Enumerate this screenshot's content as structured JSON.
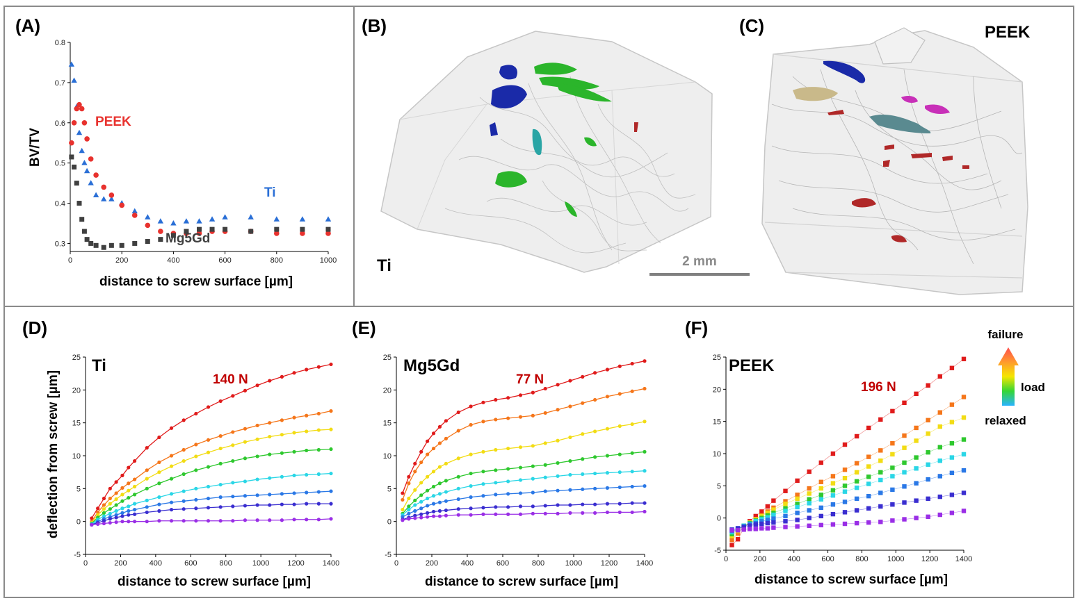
{
  "panels": {
    "A": "(A)",
    "B": "(B)",
    "C": "(C)",
    "D": "(D)",
    "E": "(E)",
    "F": "(F)"
  },
  "render3d": {
    "B_label": "Ti",
    "C_label": "PEEK",
    "scale_bar": "2 mm",
    "colors": {
      "volume": "#d8d8d8",
      "blue": "#1a2aa8",
      "green": "#2bb52b",
      "teal": "#2aa5a5",
      "red": "#b02828",
      "magenta": "#c830b8",
      "tan": "#c9b98a",
      "slate": "#5a8a90"
    }
  },
  "legend": {
    "top": "failure",
    "middle": "load",
    "bottom": "relaxed",
    "gradient": [
      "#ff4d4d",
      "#ff9a2e",
      "#f5e600",
      "#35d635",
      "#2ab4ff"
    ]
  },
  "chart_data": [
    {
      "id": "A",
      "type": "scatter",
      "xlabel": "distance to screw surface   [µm]",
      "ylabel": "BV/TV",
      "xlim": [
        0,
        1000
      ],
      "ylim": [
        0.28,
        0.8
      ],
      "xticks": [
        0,
        200,
        400,
        600,
        800,
        1000
      ],
      "yticks": [
        0.3,
        0.4,
        0.5,
        0.6,
        0.7,
        0.8
      ],
      "ytick_labels": [
        "0.3",
        "0.4",
        "0.5",
        "0.6",
        "0.7",
        "0.8"
      ],
      "series": [
        {
          "name": "Ti",
          "color": "#2a6fd6",
          "marker": "triangle",
          "x": [
            5,
            15,
            25,
            35,
            45,
            55,
            65,
            80,
            100,
            130,
            160,
            200,
            250,
            300,
            350,
            400,
            450,
            500,
            550,
            600,
            700,
            800,
            900,
            1000
          ],
          "y": [
            0.745,
            0.705,
            0.64,
            0.575,
            0.53,
            0.5,
            0.48,
            0.45,
            0.42,
            0.41,
            0.41,
            0.4,
            0.38,
            0.365,
            0.355,
            0.35,
            0.355,
            0.355,
            0.36,
            0.365,
            0.365,
            0.36,
            0.36,
            0.36
          ]
        },
        {
          "name": "PEEK",
          "color": "#e8322e",
          "marker": "circle",
          "x": [
            5,
            15,
            25,
            35,
            45,
            55,
            65,
            80,
            100,
            130,
            160,
            200,
            250,
            300,
            350,
            400,
            450,
            500,
            550,
            600,
            700,
            800,
            900,
            1000
          ],
          "y": [
            0.55,
            0.6,
            0.635,
            0.645,
            0.635,
            0.6,
            0.56,
            0.51,
            0.47,
            0.44,
            0.42,
            0.395,
            0.37,
            0.345,
            0.33,
            0.325,
            0.325,
            0.325,
            0.33,
            0.33,
            0.33,
            0.325,
            0.325,
            0.325
          ]
        },
        {
          "name": "Mg5Gd",
          "color": "#404040",
          "marker": "square",
          "x": [
            5,
            15,
            25,
            35,
            45,
            55,
            65,
            80,
            100,
            130,
            160,
            200,
            250,
            300,
            350,
            400,
            450,
            500,
            550,
            600,
            700,
            800,
            900,
            1000
          ],
          "y": [
            0.515,
            0.49,
            0.45,
            0.4,
            0.36,
            0.33,
            0.31,
            0.3,
            0.295,
            0.29,
            0.295,
            0.295,
            0.3,
            0.305,
            0.31,
            0.32,
            0.33,
            0.335,
            0.335,
            0.335,
            0.33,
            0.335,
            0.335,
            0.335
          ]
        }
      ]
    },
    {
      "id": "D",
      "type": "line",
      "title": "Ti",
      "force": "140 N",
      "xlabel": "distance to screw surface   [µm]",
      "ylabel": "deflection from screw   [µm]",
      "xlim": [
        0,
        1400
      ],
      "ylim": [
        -5,
        25
      ],
      "xticks": [
        0,
        200,
        400,
        600,
        800,
        1000,
        1200,
        1400
      ],
      "yticks": [
        -5,
        0,
        5,
        10,
        15,
        20,
        25
      ],
      "x": [
        35,
        70,
        105,
        140,
        175,
        210,
        245,
        280,
        350,
        420,
        490,
        560,
        630,
        700,
        770,
        840,
        910,
        980,
        1050,
        1120,
        1190,
        1260,
        1330,
        1400
      ],
      "series": [
        {
          "color": "#e01b1b",
          "values": [
            0.5,
            2.0,
            3.5,
            5.0,
            6.0,
            7.0,
            8.2,
            9.2,
            11.2,
            12.8,
            14.2,
            15.4,
            16.4,
            17.4,
            18.3,
            19.1,
            19.9,
            20.7,
            21.4,
            22.0,
            22.6,
            23.1,
            23.5,
            23.9
          ]
        },
        {
          "color": "#f5761a",
          "values": [
            0.0,
            1.4,
            2.5,
            3.5,
            4.3,
            5.1,
            5.8,
            6.4,
            7.8,
            9.0,
            10.0,
            10.9,
            11.7,
            12.4,
            13.0,
            13.6,
            14.1,
            14.6,
            15.0,
            15.4,
            15.8,
            16.1,
            16.4,
            16.8
          ]
        },
        {
          "color": "#f2dc14",
          "values": [
            -0.2,
            1.0,
            1.9,
            2.7,
            3.4,
            4.1,
            4.7,
            5.3,
            6.5,
            7.5,
            8.4,
            9.2,
            9.9,
            10.5,
            11.1,
            11.6,
            12.1,
            12.5,
            12.9,
            13.2,
            13.5,
            13.7,
            13.9,
            14.0
          ]
        },
        {
          "color": "#2ec82e",
          "values": [
            -0.3,
            0.6,
            1.3,
            1.9,
            2.5,
            3.1,
            3.6,
            4.1,
            5.0,
            5.8,
            6.5,
            7.2,
            7.8,
            8.3,
            8.8,
            9.2,
            9.6,
            9.9,
            10.2,
            10.4,
            10.6,
            10.8,
            10.9,
            11.0
          ]
        },
        {
          "color": "#2ad6e6",
          "values": [
            -0.4,
            0.3,
            0.8,
            1.2,
            1.6,
            2.0,
            2.3,
            2.7,
            3.2,
            3.7,
            4.2,
            4.6,
            5.0,
            5.3,
            5.6,
            5.9,
            6.1,
            6.4,
            6.6,
            6.8,
            7.0,
            7.1,
            7.2,
            7.3
          ]
        },
        {
          "color": "#2a78e6",
          "values": [
            -0.5,
            0.0,
            0.4,
            0.7,
            1.0,
            1.3,
            1.6,
            1.8,
            2.2,
            2.6,
            2.9,
            3.1,
            3.3,
            3.5,
            3.7,
            3.8,
            3.9,
            4.0,
            4.1,
            4.2,
            4.3,
            4.4,
            4.5,
            4.6
          ]
        },
        {
          "color": "#3a2ed0",
          "values": [
            -0.5,
            -0.2,
            0.1,
            0.4,
            0.6,
            0.8,
            1.0,
            1.1,
            1.4,
            1.6,
            1.8,
            1.9,
            2.0,
            2.1,
            2.2,
            2.3,
            2.4,
            2.5,
            2.5,
            2.6,
            2.6,
            2.7,
            2.7,
            2.7
          ]
        },
        {
          "color": "#9a2ee6",
          "values": [
            -0.5,
            -0.4,
            -0.3,
            -0.2,
            -0.1,
            0.0,
            0.0,
            0.0,
            0.0,
            0.1,
            0.1,
            0.1,
            0.1,
            0.1,
            0.1,
            0.1,
            0.2,
            0.2,
            0.2,
            0.2,
            0.3,
            0.3,
            0.3,
            0.4
          ]
        }
      ]
    },
    {
      "id": "E",
      "type": "line",
      "title": "Mg5Gd",
      "force": "77 N",
      "xlabel": "distance to screw surface   [µm]",
      "ylabel": "",
      "xlim": [
        0,
        1400
      ],
      "ylim": [
        -5,
        25
      ],
      "xticks": [
        0,
        200,
        400,
        600,
        800,
        1000,
        1200,
        1400
      ],
      "yticks": [
        -5,
        0,
        5,
        10,
        15,
        20,
        25
      ],
      "x": [
        35,
        70,
        105,
        140,
        175,
        210,
        245,
        280,
        350,
        420,
        490,
        560,
        630,
        700,
        770,
        840,
        910,
        980,
        1050,
        1120,
        1190,
        1260,
        1330,
        1400
      ],
      "series": [
        {
          "color": "#e01b1b",
          "values": [
            4.3,
            6.8,
            8.8,
            10.6,
            12.2,
            13.4,
            14.4,
            15.3,
            16.6,
            17.5,
            18.1,
            18.5,
            18.8,
            19.2,
            19.6,
            20.2,
            20.8,
            21.4,
            22.0,
            22.6,
            23.1,
            23.6,
            24.0,
            24.4
          ]
        },
        {
          "color": "#f5761a",
          "values": [
            3.3,
            5.8,
            7.6,
            9.0,
            10.2,
            11.1,
            11.9,
            12.6,
            13.8,
            14.7,
            15.2,
            15.5,
            15.7,
            15.9,
            16.1,
            16.5,
            17.0,
            17.5,
            18.0,
            18.5,
            19.0,
            19.4,
            19.8,
            20.2
          ]
        },
        {
          "color": "#f2dc14",
          "values": [
            1.8,
            3.5,
            4.8,
            5.9,
            6.8,
            7.6,
            8.3,
            8.8,
            9.6,
            10.2,
            10.6,
            10.9,
            11.1,
            11.3,
            11.5,
            11.9,
            12.3,
            12.8,
            13.3,
            13.7,
            14.1,
            14.5,
            14.8,
            15.2
          ]
        },
        {
          "color": "#2ec82e",
          "values": [
            1.2,
            2.3,
            3.2,
            4.0,
            4.7,
            5.3,
            5.8,
            6.2,
            6.8,
            7.3,
            7.6,
            7.8,
            8.0,
            8.2,
            8.4,
            8.6,
            8.9,
            9.2,
            9.5,
            9.8,
            10.0,
            10.2,
            10.4,
            10.6
          ]
        },
        {
          "color": "#2ad6e6",
          "values": [
            1.0,
            1.8,
            2.5,
            3.0,
            3.5,
            3.9,
            4.2,
            4.5,
            5.0,
            5.4,
            5.7,
            5.9,
            6.1,
            6.3,
            6.5,
            6.7,
            6.9,
            7.1,
            7.2,
            7.3,
            7.4,
            7.5,
            7.6,
            7.7
          ]
        },
        {
          "color": "#2a78e6",
          "values": [
            0.7,
            1.2,
            1.6,
            2.0,
            2.4,
            2.7,
            2.9,
            3.1,
            3.4,
            3.7,
            3.9,
            4.1,
            4.2,
            4.3,
            4.4,
            4.6,
            4.7,
            4.8,
            4.9,
            5.0,
            5.1,
            5.2,
            5.3,
            5.4
          ]
        },
        {
          "color": "#3a2ed0",
          "values": [
            0.3,
            0.6,
            0.9,
            1.1,
            1.3,
            1.5,
            1.6,
            1.7,
            1.9,
            2.0,
            2.1,
            2.2,
            2.2,
            2.3,
            2.3,
            2.4,
            2.5,
            2.5,
            2.6,
            2.6,
            2.7,
            2.7,
            2.8,
            2.8
          ]
        },
        {
          "color": "#9a2ee6",
          "values": [
            0.2,
            0.4,
            0.5,
            0.6,
            0.7,
            0.8,
            0.8,
            0.9,
            1.0,
            1.0,
            1.1,
            1.1,
            1.1,
            1.1,
            1.2,
            1.2,
            1.2,
            1.3,
            1.3,
            1.3,
            1.4,
            1.4,
            1.4,
            1.5
          ]
        }
      ]
    },
    {
      "id": "F",
      "type": "line",
      "title": "PEEK",
      "force": "196 N",
      "xlabel": "distance to screw surface   [µm]",
      "ylabel": "",
      "xlim": [
        0,
        1400
      ],
      "ylim": [
        -5,
        25
      ],
      "xticks": [
        0,
        200,
        400,
        600,
        800,
        1000,
        1200,
        1400
      ],
      "yticks": [
        -5,
        0,
        5,
        10,
        15,
        20,
        25
      ],
      "x": [
        35,
        70,
        105,
        140,
        175,
        210,
        245,
        280,
        350,
        420,
        490,
        560,
        630,
        700,
        770,
        840,
        910,
        980,
        1050,
        1120,
        1190,
        1260,
        1330,
        1400
      ],
      "series": [
        {
          "color": "#e01b1b",
          "values": [
            -4.2,
            -3.3,
            -1.6,
            -0.5,
            0.3,
            1.0,
            1.8,
            2.7,
            4.2,
            5.8,
            7.2,
            8.6,
            10.0,
            11.4,
            12.7,
            14.0,
            15.3,
            16.6,
            17.9,
            19.3,
            20.6,
            22.0,
            23.3,
            24.7
          ]
        },
        {
          "color": "#f5761a",
          "values": [
            -3.4,
            -2.4,
            -1.4,
            -0.8,
            -0.2,
            0.4,
            1.0,
            1.6,
            2.6,
            3.6,
            4.6,
            5.6,
            6.5,
            7.5,
            8.5,
            9.5,
            10.5,
            11.6,
            12.8,
            14.0,
            15.2,
            16.4,
            17.6,
            18.8
          ]
        },
        {
          "color": "#f2dc14",
          "values": [
            -2.8,
            -2.0,
            -1.2,
            -0.7,
            -0.2,
            0.3,
            0.8,
            1.3,
            2.2,
            3.0,
            3.8,
            4.6,
            5.4,
            6.2,
            7.1,
            8.0,
            8.9,
            9.9,
            10.9,
            12.0,
            13.1,
            14.2,
            14.9,
            15.6
          ]
        },
        {
          "color": "#2ec82e",
          "values": [
            -2.5,
            -1.8,
            -1.2,
            -0.8,
            -0.4,
            0.0,
            0.4,
            0.8,
            1.5,
            2.2,
            2.9,
            3.6,
            4.3,
            5.0,
            5.7,
            6.4,
            7.1,
            7.8,
            8.6,
            9.4,
            10.2,
            11.0,
            11.6,
            12.2
          ]
        },
        {
          "color": "#2ad6e6",
          "values": [
            -2.2,
            -1.7,
            -1.2,
            -0.9,
            -0.5,
            -0.2,
            0.1,
            0.5,
            1.1,
            1.7,
            2.3,
            2.9,
            3.5,
            4.1,
            4.7,
            5.3,
            5.9,
            6.5,
            7.1,
            7.7,
            8.3,
            8.9,
            9.4,
            9.9
          ]
        },
        {
          "color": "#2a78e6",
          "values": [
            -2.0,
            -1.6,
            -1.3,
            -1.0,
            -0.8,
            -0.5,
            -0.3,
            -0.1,
            0.3,
            0.8,
            1.2,
            1.6,
            2.1,
            2.5,
            3.0,
            3.4,
            3.9,
            4.4,
            4.9,
            5.4,
            6.0,
            6.5,
            7.0,
            7.4
          ]
        },
        {
          "color": "#3a2ed0",
          "values": [
            -1.8,
            -1.6,
            -1.4,
            -1.2,
            -1.0,
            -0.9,
            -0.8,
            -0.7,
            -0.5,
            -0.3,
            0.0,
            0.3,
            0.6,
            0.9,
            1.2,
            1.5,
            1.8,
            2.1,
            2.4,
            2.7,
            3.0,
            3.3,
            3.6,
            3.9
          ]
        },
        {
          "color": "#9a2ee6",
          "values": [
            -1.9,
            -1.9,
            -1.8,
            -1.7,
            -1.7,
            -1.6,
            -1.6,
            -1.5,
            -1.4,
            -1.3,
            -1.2,
            -1.1,
            -1.0,
            -0.9,
            -0.8,
            -0.7,
            -0.6,
            -0.4,
            -0.2,
            0.0,
            0.2,
            0.5,
            0.8,
            1.1
          ]
        }
      ]
    }
  ]
}
